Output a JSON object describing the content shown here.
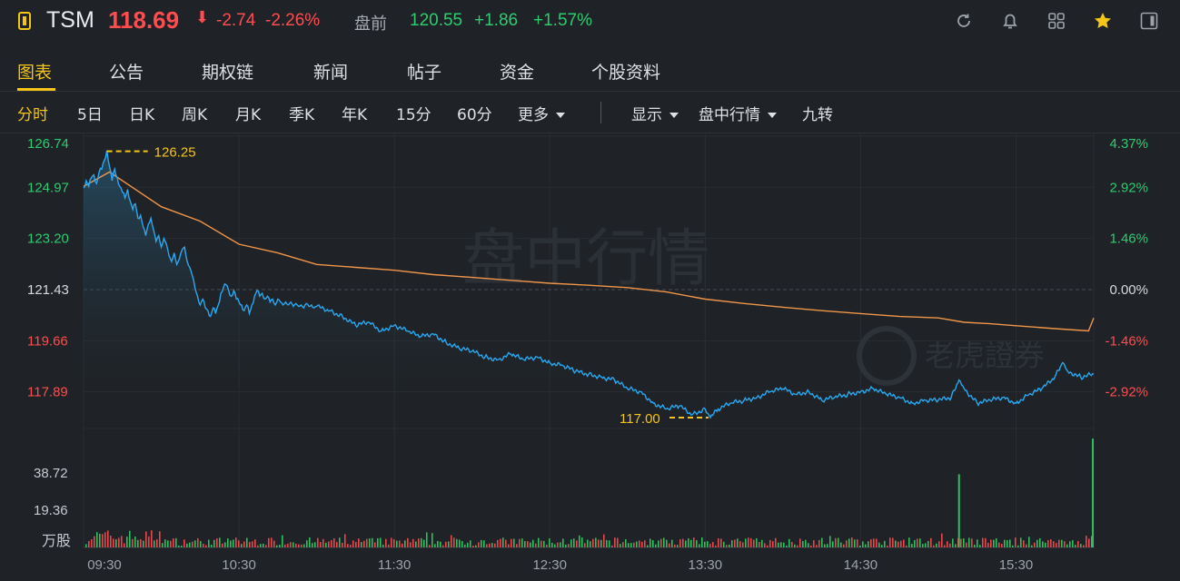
{
  "header": {
    "symbol": "TSM",
    "price": "118.69",
    "change": "-2.74",
    "change_pct": "-2.26%",
    "premarket_label": "盘前",
    "premarket_price": "120.55",
    "premarket_change": "+1.86",
    "premarket_change_pct": "+1.57%",
    "icons": [
      "refresh-icon",
      "bell-icon",
      "grid-icon",
      "star-icon",
      "panel-icon"
    ],
    "colors": {
      "down": "#ff4d4f",
      "up": "#2ecc71",
      "accent": "#f5c518"
    }
  },
  "tabs": [
    {
      "label": "图表",
      "active": true
    },
    {
      "label": "公告"
    },
    {
      "label": "期权链"
    },
    {
      "label": "新闻"
    },
    {
      "label": "帖子"
    },
    {
      "label": "资金"
    },
    {
      "label": "个股资料"
    }
  ],
  "periods": [
    {
      "label": "分时",
      "active": true
    },
    {
      "label": "5日"
    },
    {
      "label": "日K"
    },
    {
      "label": "周K"
    },
    {
      "label": "月K"
    },
    {
      "label": "季K"
    },
    {
      "label": "年K"
    },
    {
      "label": "15分"
    },
    {
      "label": "60分"
    },
    {
      "label": "更多"
    }
  ],
  "tools": [
    {
      "label": "显示"
    },
    {
      "label": "盘中行情"
    },
    {
      "label": "九转"
    }
  ],
  "watermark": "盘中行情",
  "brand_watermark": "老虎證券",
  "chart_data": {
    "type": "line",
    "x_ticks": [
      "09:30",
      "10:30",
      "11:30",
      "12:30",
      "13:30",
      "14:30",
      "15:30"
    ],
    "price_ticks": [
      "126.74",
      "124.97",
      "123.20",
      "121.43",
      "119.66",
      "117.89"
    ],
    "pct_ticks": [
      "4.37%",
      "2.92%",
      "1.46%",
      "0.00%",
      "-1.46%",
      "-2.92%"
    ],
    "ylim": [
      117.0,
      126.74
    ],
    "prev_close": 121.43,
    "high_label": "126.25",
    "low_label": "117.00",
    "high_time": "09:39",
    "low_time": "13:32",
    "price_series": [
      [
        "09:30",
        124.95
      ],
      [
        "09:31",
        125.2
      ],
      [
        "09:32",
        125.0
      ],
      [
        "09:33",
        125.3
      ],
      [
        "09:34",
        125.4
      ],
      [
        "09:35",
        125.1
      ],
      [
        "09:36",
        125.5
      ],
      [
        "09:37",
        125.6
      ],
      [
        "09:38",
        125.9
      ],
      [
        "09:39",
        126.25
      ],
      [
        "09:40",
        125.7
      ],
      [
        "09:41",
        125.2
      ],
      [
        "09:42",
        125.6
      ],
      [
        "09:43",
        125.3
      ],
      [
        "09:44",
        125.0
      ],
      [
        "09:45",
        124.8
      ],
      [
        "09:46",
        124.6
      ],
      [
        "09:47",
        124.9
      ],
      [
        "09:48",
        124.5
      ],
      [
        "09:49",
        124.2
      ],
      [
        "09:50",
        124.4
      ],
      [
        "09:51",
        123.9
      ],
      [
        "09:52",
        124.0
      ],
      [
        "09:53",
        123.6
      ],
      [
        "09:54",
        123.3
      ],
      [
        "09:55",
        123.7
      ],
      [
        "09:56",
        123.9
      ],
      [
        "09:57",
        123.5
      ],
      [
        "09:58",
        123.1
      ],
      [
        "09:59",
        123.3
      ],
      [
        "10:00",
        122.9
      ],
      [
        "10:01",
        123.2
      ],
      [
        "10:02",
        123.0
      ],
      [
        "10:03",
        122.6
      ],
      [
        "10:04",
        122.4
      ],
      [
        "10:05",
        122.7
      ],
      [
        "10:06",
        122.3
      ],
      [
        "10:07",
        122.5
      ],
      [
        "10:08",
        122.8
      ],
      [
        "10:09",
        122.9
      ],
      [
        "10:10",
        122.4
      ],
      [
        "10:11",
        122.2
      ],
      [
        "10:12",
        121.9
      ],
      [
        "10:13",
        121.5
      ],
      [
        "10:14",
        121.2
      ],
      [
        "10:15",
        120.9
      ],
      [
        "10:16",
        121.1
      ],
      [
        "10:17",
        120.8
      ],
      [
        "10:18",
        120.7
      ],
      [
        "10:19",
        120.5
      ],
      [
        "10:20",
        120.8
      ],
      [
        "10:21",
        120.6
      ],
      [
        "10:22",
        120.9
      ],
      [
        "10:23",
        121.3
      ],
      [
        "10:24",
        121.5
      ],
      [
        "10:25",
        121.6
      ],
      [
        "10:26",
        121.4
      ],
      [
        "10:27",
        121.2
      ],
      [
        "10:28",
        121.4
      ],
      [
        "10:29",
        121.1
      ],
      [
        "10:30",
        121.0
      ],
      [
        "10:31",
        120.9
      ],
      [
        "10:32",
        120.7
      ],
      [
        "10:33",
        120.9
      ],
      [
        "10:34",
        120.6
      ],
      [
        "10:35",
        120.9
      ],
      [
        "10:36",
        121.2
      ],
      [
        "10:37",
        121.4
      ],
      [
        "10:38",
        121.2
      ],
      [
        "10:39",
        121.3
      ],
      [
        "10:40",
        121.1
      ],
      [
        "10:41",
        121.2
      ],
      [
        "10:42",
        121.0
      ],
      [
        "10:43",
        121.1
      ],
      [
        "10:44",
        120.9
      ],
      [
        "10:45",
        121.1
      ],
      [
        "10:46",
        121.0
      ],
      [
        "10:47",
        120.9
      ],
      [
        "10:48",
        121.0
      ],
      [
        "10:49",
        120.9
      ],
      [
        "10:50",
        121.0
      ],
      [
        "10:51",
        120.85
      ],
      [
        "10:52",
        120.95
      ],
      [
        "10:53",
        120.85
      ],
      [
        "10:54",
        120.9
      ],
      [
        "10:55",
        120.8
      ],
      [
        "10:56",
        120.95
      ],
      [
        "10:57",
        120.85
      ],
      [
        "10:58",
        120.9
      ],
      [
        "10:59",
        120.8
      ],
      [
        "11:00",
        120.85
      ],
      [
        "11:05",
        120.7
      ],
      [
        "11:10",
        120.5
      ],
      [
        "11:15",
        120.2
      ],
      [
        "11:20",
        120.3
      ],
      [
        "11:25",
        120.0
      ],
      [
        "11:30",
        120.2
      ],
      [
        "11:35",
        120.0
      ],
      [
        "11:40",
        119.8
      ],
      [
        "11:45",
        119.9
      ],
      [
        "11:50",
        119.6
      ],
      [
        "11:55",
        119.4
      ],
      [
        "12:00",
        119.3
      ],
      [
        "12:05",
        119.1
      ],
      [
        "12:10",
        119.0
      ],
      [
        "12:15",
        119.2
      ],
      [
        "12:20",
        119.0
      ],
      [
        "12:25",
        119.1
      ],
      [
        "12:30",
        118.9
      ],
      [
        "12:35",
        118.8
      ],
      [
        "12:40",
        118.6
      ],
      [
        "12:45",
        118.5
      ],
      [
        "12:50",
        118.4
      ],
      [
        "12:55",
        118.3
      ],
      [
        "13:00",
        118.0
      ],
      [
        "13:05",
        117.9
      ],
      [
        "13:10",
        117.5
      ],
      [
        "13:15",
        117.3
      ],
      [
        "13:20",
        117.4
      ],
      [
        "13:25",
        117.1
      ],
      [
        "13:30",
        117.3
      ],
      [
        "13:32",
        117.0
      ],
      [
        "13:35",
        117.3
      ],
      [
        "13:40",
        117.5
      ],
      [
        "13:45",
        117.6
      ],
      [
        "13:50",
        117.7
      ],
      [
        "13:55",
        117.9
      ],
      [
        "14:00",
        118.0
      ],
      [
        "14:05",
        117.8
      ],
      [
        "14:10",
        117.9
      ],
      [
        "14:15",
        117.6
      ],
      [
        "14:20",
        117.7
      ],
      [
        "14:25",
        117.8
      ],
      [
        "14:30",
        117.9
      ],
      [
        "14:35",
        118.0
      ],
      [
        "14:40",
        117.8
      ],
      [
        "14:45",
        117.7
      ],
      [
        "14:50",
        117.5
      ],
      [
        "14:55",
        117.6
      ],
      [
        "15:00",
        117.6
      ],
      [
        "15:05",
        117.7
      ],
      [
        "15:08",
        118.3
      ],
      [
        "15:10",
        118.0
      ],
      [
        "15:15",
        117.5
      ],
      [
        "15:20",
        117.6
      ],
      [
        "15:25",
        117.7
      ],
      [
        "15:30",
        117.5
      ],
      [
        "15:35",
        117.8
      ],
      [
        "15:40",
        118.0
      ],
      [
        "15:45",
        118.4
      ],
      [
        "15:48",
        118.9
      ],
      [
        "15:50",
        118.6
      ],
      [
        "15:55",
        118.4
      ],
      [
        "16:00",
        118.5
      ]
    ],
    "avg_series": [
      [
        "09:30",
        125.0
      ],
      [
        "09:40",
        125.5
      ],
      [
        "09:50",
        124.9
      ],
      [
        "10:00",
        124.3
      ],
      [
        "10:15",
        123.8
      ],
      [
        "10:30",
        123.0
      ],
      [
        "10:45",
        122.7
      ],
      [
        "11:00",
        122.3
      ],
      [
        "11:15",
        122.2
      ],
      [
        "11:30",
        122.1
      ],
      [
        "11:45",
        121.95
      ],
      [
        "12:00",
        121.85
      ],
      [
        "12:15",
        121.75
      ],
      [
        "12:30",
        121.65
      ],
      [
        "12:45",
        121.58
      ],
      [
        "13:00",
        121.5
      ],
      [
        "13:15",
        121.35
      ],
      [
        "13:30",
        121.1
      ],
      [
        "13:45",
        120.95
      ],
      [
        "14:00",
        120.82
      ],
      [
        "14:15",
        120.7
      ],
      [
        "14:30",
        120.6
      ],
      [
        "14:45",
        120.5
      ],
      [
        "15:00",
        120.45
      ],
      [
        "15:10",
        120.3
      ],
      [
        "15:20",
        120.25
      ],
      [
        "15:30",
        120.18
      ],
      [
        "15:45",
        120.08
      ],
      [
        "15:58",
        120.0
      ],
      [
        "16:00",
        120.45
      ]
    ],
    "volume_ticks": [
      "38.72",
      "19.36",
      "万股"
    ],
    "volume_ylim": [
      0,
      58.0
    ],
    "volume_spikes": [
      [
        "15:08",
        38.0
      ],
      [
        "16:00",
        56.5
      ]
    ]
  }
}
